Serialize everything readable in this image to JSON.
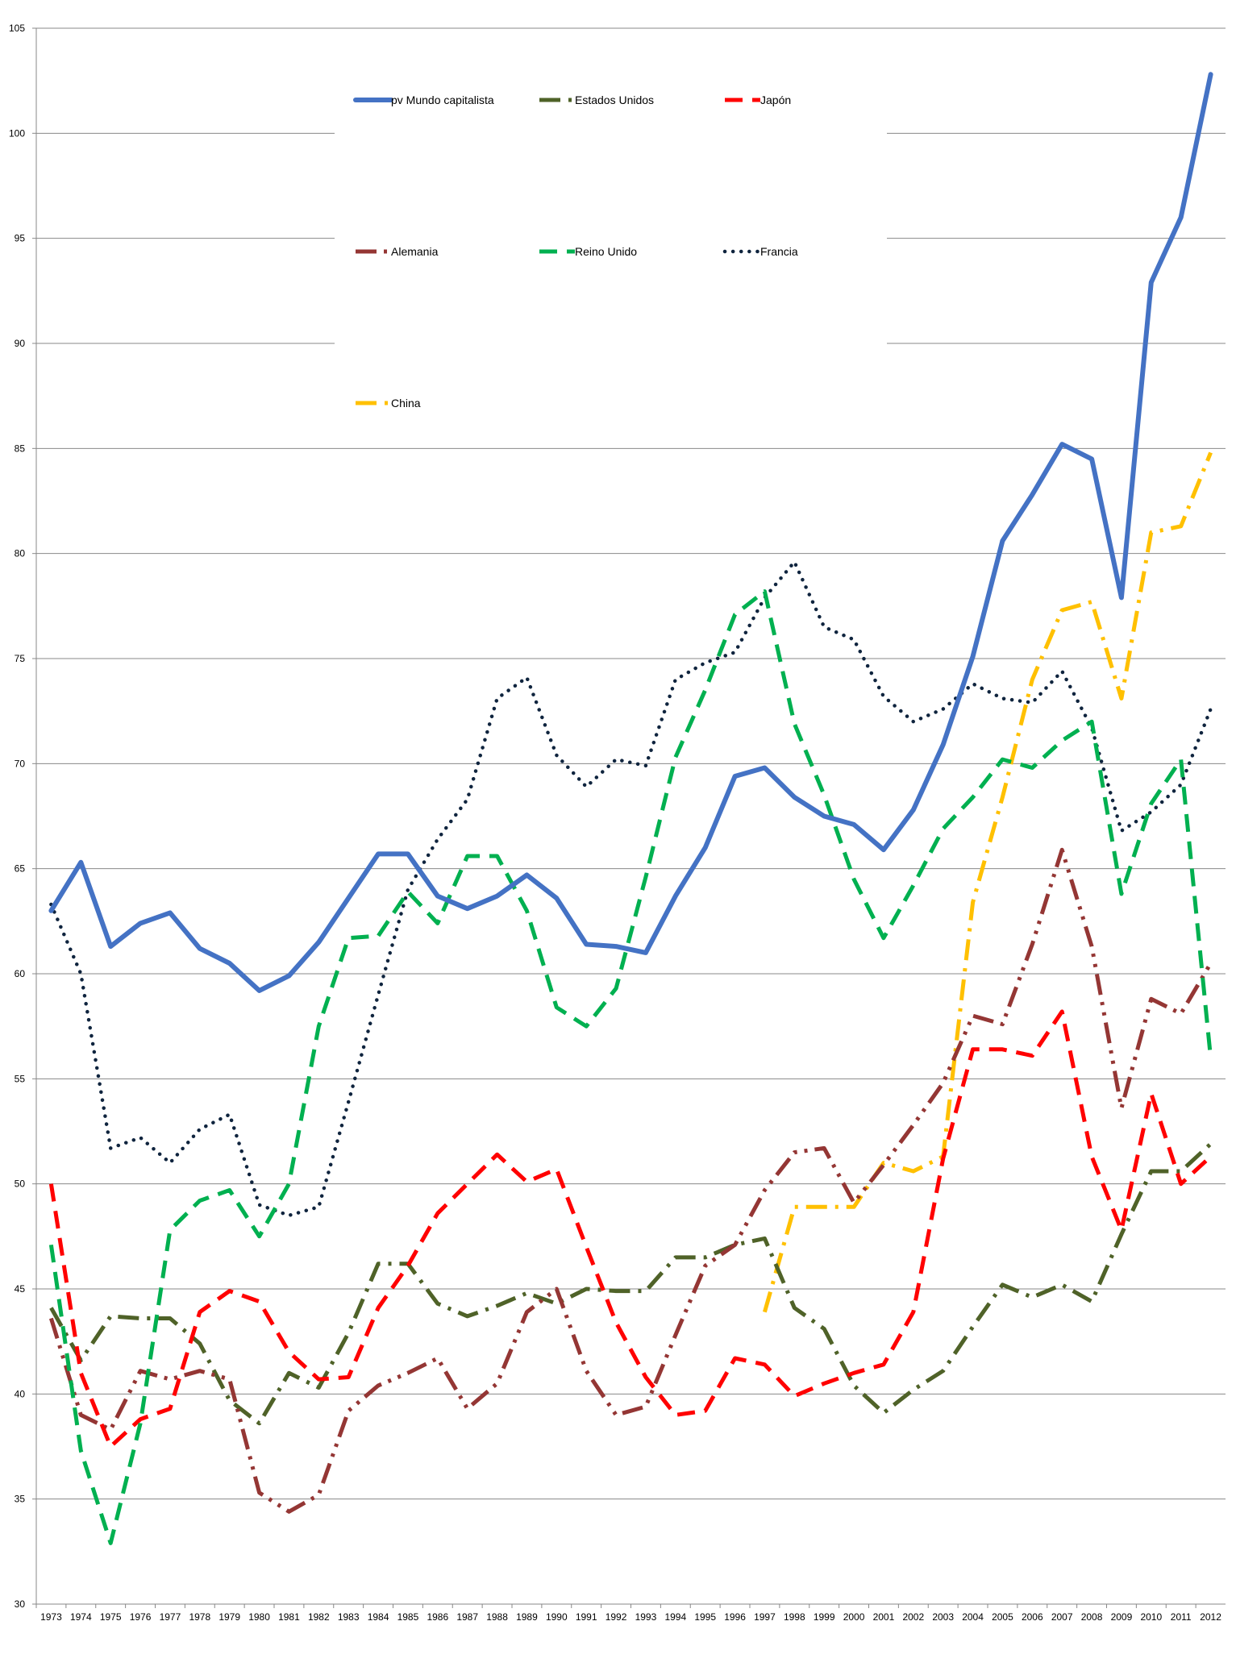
{
  "chart_data": {
    "type": "line",
    "title": "",
    "xlabel": "",
    "ylabel": "",
    "ylim": [
      30,
      105
    ],
    "yticks": [
      30,
      35,
      40,
      45,
      50,
      55,
      60,
      65,
      70,
      75,
      80,
      85,
      90,
      95,
      100,
      105
    ],
    "grid": "horizontal",
    "legend_position": "top-center",
    "x": [
      "1973",
      "1974",
      "1975",
      "1976",
      "1977",
      "1978",
      "1979",
      "1980",
      "1981",
      "1982",
      "1983",
      "1984",
      "1985",
      "1986",
      "1987",
      "1988",
      "1989",
      "1990",
      "1991",
      "1992",
      "1993",
      "1994",
      "1995",
      "1996",
      "1997",
      "1998",
      "1999",
      "2000",
      "2001",
      "2002",
      "2003",
      "2004",
      "2005",
      "2006",
      "2007",
      "2008",
      "2009",
      "2010",
      "2011",
      "2012"
    ],
    "series": [
      {
        "name": "pv Mundo capitalista",
        "color": "#4472C4",
        "style": "solid",
        "values": [
          63.0,
          65.3,
          61.3,
          62.4,
          62.9,
          61.2,
          60.5,
          59.2,
          59.9,
          61.5,
          63.6,
          65.7,
          65.7,
          63.7,
          63.1,
          63.7,
          64.7,
          63.6,
          61.4,
          61.3,
          61.0,
          63.7,
          66.0,
          69.4,
          69.8,
          68.4,
          67.5,
          67.1,
          65.9,
          67.8,
          70.9,
          75.1,
          80.6,
          82.8,
          85.2,
          84.5,
          77.9,
          92.9,
          96.0,
          102.8
        ]
      },
      {
        "name": "Estados Unidos",
        "color": "#4F6228",
        "style": "dashdot",
        "values": [
          44.1,
          41.6,
          43.7,
          43.6,
          43.6,
          42.4,
          39.7,
          38.6,
          41.0,
          40.3,
          42.9,
          46.2,
          46.2,
          44.3,
          43.7,
          44.2,
          44.8,
          44.3,
          45.0,
          44.9,
          44.9,
          46.5,
          46.5,
          47.1,
          47.4,
          44.1,
          43.1,
          40.4,
          39.1,
          40.2,
          41.1,
          43.2,
          45.2,
          44.6,
          45.2,
          44.4,
          47.6,
          50.6,
          50.6,
          51.9
        ]
      },
      {
        "name": "Japón",
        "color": "#FF0000",
        "style": "dash",
        "values": [
          50.0,
          41.0,
          37.5,
          38.8,
          39.3,
          43.9,
          44.9,
          44.4,
          42.0,
          40.7,
          40.8,
          44.1,
          46.1,
          48.6,
          50.0,
          51.4,
          50.1,
          50.7,
          47.0,
          43.4,
          40.8,
          39.0,
          39.2,
          41.7,
          41.4,
          39.9,
          40.5,
          41.0,
          41.4,
          43.9,
          51.2,
          56.4,
          56.4,
          56.1,
          58.2,
          51.3,
          47.8,
          54.3,
          50.0,
          51.3
        ]
      },
      {
        "name": "Alemania",
        "color": "#943634",
        "style": "dashdotdot",
        "values": [
          43.6,
          39.0,
          38.3,
          41.1,
          40.7,
          41.1,
          40.7,
          35.3,
          34.4,
          35.2,
          39.2,
          40.4,
          41.0,
          41.7,
          39.3,
          40.5,
          43.9,
          45.0,
          41.1,
          39.0,
          39.4,
          42.8,
          46.1,
          47.1,
          49.7,
          51.5,
          51.7,
          49.1,
          50.9,
          52.8,
          54.8,
          58.0,
          57.6,
          61.4,
          65.9,
          61.3,
          53.6,
          58.8,
          58.1,
          60.5
        ]
      },
      {
        "name": "Reino Unido",
        "color": "#00B050",
        "style": "dash",
        "values": [
          47.1,
          37.3,
          32.9,
          38.6,
          47.8,
          49.2,
          49.7,
          47.5,
          50.0,
          57.5,
          61.7,
          61.8,
          63.9,
          62.4,
          65.6,
          65.6,
          63.0,
          58.4,
          57.5,
          59.3,
          64.6,
          70.3,
          73.5,
          77.1,
          78.2,
          71.9,
          68.5,
          64.5,
          61.7,
          64.2,
          66.9,
          68.4,
          70.2,
          69.8,
          71.1,
          72.0,
          63.8,
          68.1,
          70.2,
          56.0
        ]
      },
      {
        "name": "Francia",
        "color": "#0F243E",
        "style": "dot",
        "values": [
          63.3,
          60.0,
          51.7,
          52.2,
          51.0,
          52.6,
          53.3,
          49.0,
          48.5,
          48.9,
          53.9,
          59.0,
          64.0,
          66.4,
          68.3,
          73.1,
          74.1,
          70.4,
          68.9,
          70.2,
          69.9,
          74.0,
          74.8,
          75.3,
          77.9,
          79.6,
          76.5,
          75.9,
          73.2,
          72.0,
          72.6,
          73.8,
          73.1,
          72.9,
          74.4,
          71.7,
          66.8,
          67.7,
          69.0,
          72.6
        ]
      },
      {
        "name": "China",
        "color": "#FFC000",
        "style": "dashdot",
        "values": [
          null,
          null,
          null,
          null,
          null,
          null,
          null,
          null,
          null,
          null,
          null,
          null,
          null,
          null,
          null,
          null,
          null,
          null,
          null,
          null,
          null,
          null,
          null,
          null,
          43.9,
          48.9,
          48.9,
          48.9,
          51.0,
          50.6,
          51.3,
          63.4,
          68.4,
          74.0,
          77.3,
          77.7,
          73.1,
          81.0,
          81.3,
          84.8
        ]
      }
    ]
  }
}
